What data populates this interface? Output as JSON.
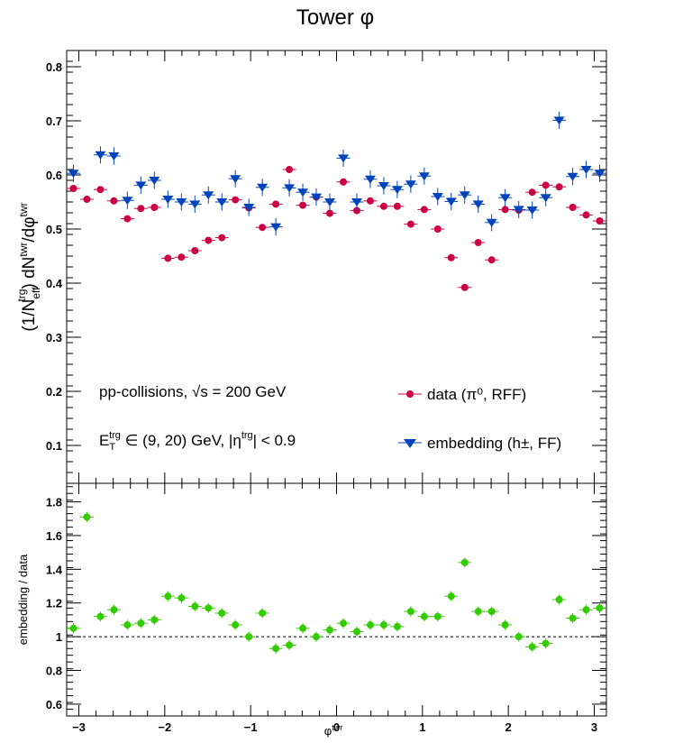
{
  "title": "Tower φ",
  "chart_data": [
    {
      "type": "scatter",
      "ylabel": "(1/N_eff^trg) dN^twr/dφ^twr",
      "xlim": [
        -3.1416,
        3.1416
      ],
      "ylim": [
        0.03,
        0.83
      ],
      "yticks": [
        0.1,
        0.2,
        0.3,
        0.4,
        0.5,
        0.6,
        0.7,
        0.8
      ],
      "ytick_labels": [
        "0.1",
        "0.2",
        "0.3",
        "0.4",
        "0.5",
        "0.6",
        "0.7",
        "0.8"
      ],
      "annotations": {
        "line1": "pp-collisions, √s = 200 GeV",
        "line2": "E_T^trg ∈ (9, 20) GeV, |η^trg| < 0.9"
      },
      "legend_position": "bottom-right",
      "bin_half_width": 0.0785,
      "series": [
        {
          "name": "data (π⁰, RFF)",
          "color": "#cc0044",
          "marker": "circle",
          "x": [
            -3.063,
            -2.906,
            -2.749,
            -2.592,
            -2.435,
            -2.278,
            -2.121,
            -1.963,
            -1.806,
            -1.649,
            -1.492,
            -1.335,
            -1.178,
            -1.021,
            -0.864,
            -0.707,
            -0.55,
            -0.393,
            -0.236,
            -0.079,
            0.079,
            0.236,
            0.393,
            0.55,
            0.707,
            0.864,
            1.021,
            1.178,
            1.335,
            1.492,
            1.649,
            1.806,
            1.963,
            2.121,
            2.278,
            2.435,
            2.592,
            2.749,
            2.906,
            3.063
          ],
          "y": [
            0.575,
            0.555,
            0.573,
            0.552,
            0.519,
            0.538,
            0.54,
            0.446,
            0.448,
            0.46,
            0.479,
            0.484,
            0.554,
            0.539,
            0.503,
            0.546,
            0.61,
            0.544,
            0.559,
            0.529,
            0.587,
            0.534,
            0.552,
            0.542,
            0.542,
            0.509,
            0.536,
            0.5,
            0.447,
            0.392,
            0.475,
            0.443,
            0.536,
            0.535,
            0.568,
            0.581,
            0.578,
            0.54,
            0.526,
            0.515
          ],
          "yerr": 0.004
        },
        {
          "name": "embedding (h±, FF)",
          "color": "#0044bb",
          "marker": "triangle-down",
          "x": [
            -3.063,
            -2.906,
            -2.749,
            -2.592,
            -2.435,
            -2.278,
            -2.121,
            -1.963,
            -1.806,
            -1.649,
            -1.492,
            -1.335,
            -1.178,
            -1.021,
            -0.864,
            -0.707,
            -0.55,
            -0.393,
            -0.236,
            -0.079,
            0.079,
            0.236,
            0.393,
            0.55,
            0.707,
            0.864,
            1.021,
            1.178,
            1.335,
            1.492,
            1.649,
            1.806,
            1.963,
            2.121,
            2.278,
            2.435,
            2.592,
            2.749,
            2.906,
            3.063
          ],
          "y": [
            0.603,
            null,
            0.637,
            0.635,
            0.553,
            0.581,
            0.59,
            0.555,
            0.55,
            0.546,
            0.563,
            0.55,
            0.593,
            0.54,
            0.577,
            0.504,
            0.576,
            0.568,
            0.559,
            0.55,
            0.631,
            0.55,
            0.592,
            0.58,
            0.573,
            0.583,
            0.598,
            0.56,
            0.551,
            0.563,
            0.546,
            0.512,
            0.558,
            0.536,
            0.535,
            0.558,
            0.701,
            0.597,
            0.61,
            0.603
          ],
          "yerr": 0.016
        }
      ]
    },
    {
      "type": "scatter",
      "xlabel": "φ^twr",
      "ylabel": "embedding / data",
      "xlim": [
        -3.1416,
        3.1416
      ],
      "ylim": [
        0.53,
        1.91
      ],
      "yticks": [
        0.6,
        0.8,
        1.0,
        1.2,
        1.4,
        1.6,
        1.8
      ],
      "ytick_labels": [
        "0.6",
        "0.8",
        "1",
        "1.2",
        "1.4",
        "1.6",
        "1.8"
      ],
      "xticks": [
        -3,
        -2,
        -1,
        0,
        1,
        2,
        3
      ],
      "xtick_labels": [
        "−3",
        "−2",
        "−1",
        "0",
        "1",
        "2",
        "3"
      ],
      "reference_line": 1.0,
      "series": [
        {
          "color": "#33cc00",
          "marker": "circle",
          "x": [
            -3.063,
            -2.906,
            -2.749,
            -2.592,
            -2.435,
            -2.278,
            -2.121,
            -1.963,
            -1.806,
            -1.649,
            -1.492,
            -1.335,
            -1.178,
            -1.021,
            -0.864,
            -0.707,
            -0.55,
            -0.393,
            -0.236,
            -0.079,
            0.079,
            0.236,
            0.393,
            0.55,
            0.707,
            0.864,
            1.021,
            1.178,
            1.335,
            1.492,
            1.649,
            1.806,
            1.963,
            2.121,
            2.278,
            2.435,
            2.592,
            2.749,
            2.906,
            3.063
          ],
          "y": [
            1.05,
            1.71,
            1.12,
            1.16,
            1.07,
            1.08,
            1.1,
            1.24,
            1.23,
            1.18,
            1.17,
            1.14,
            1.07,
            1.0,
            1.14,
            0.93,
            0.95,
            1.05,
            1.0,
            1.04,
            1.08,
            1.03,
            1.07,
            1.07,
            1.06,
            1.15,
            1.12,
            1.12,
            1.24,
            1.44,
            1.15,
            1.15,
            1.07,
            1.0,
            0.94,
            0.96,
            1.22,
            1.11,
            1.16,
            1.17
          ],
          "yerr": 0.03
        }
      ]
    }
  ]
}
